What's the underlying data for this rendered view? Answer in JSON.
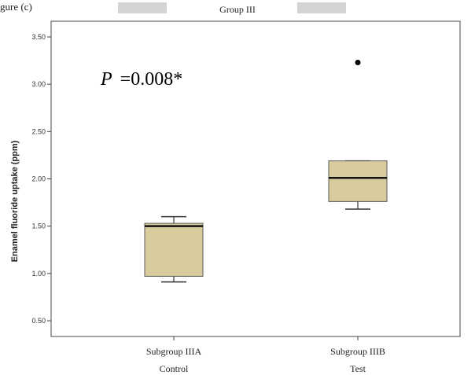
{
  "header_fragment": "gure (c)",
  "chart_data": {
    "type": "box",
    "title": "Group III",
    "xlabel": "",
    "ylabel": "Enamel fluoride uptake (ppm)",
    "ylim": [
      0.4,
      3.65
    ],
    "yticks": [
      "0.50",
      "1.00",
      "1.50",
      "2.00",
      "2.50",
      "3.00",
      "3.50"
    ],
    "ytick_values": [
      0.5,
      1.0,
      1.5,
      2.0,
      2.5,
      3.0,
      3.5
    ],
    "grid": false,
    "annotation": {
      "p_label": "P",
      "p_value": "=0.008*"
    },
    "categories": [
      {
        "line1": "Subgroup IIIA",
        "line2": "Control"
      },
      {
        "line1": "Subgroup IIIB",
        "line2": "Test"
      }
    ],
    "boxes": [
      {
        "min": 0.91,
        "q1": 0.97,
        "median": 1.5,
        "q3": 1.53,
        "max": 1.6,
        "outliers": []
      },
      {
        "min": 1.68,
        "q1": 1.76,
        "median": 2.01,
        "q3": 2.19,
        "max": 2.19,
        "outliers": [
          3.23
        ]
      }
    ],
    "colors": {
      "box_fill": "#d8cc9c",
      "box_stroke": "#5a5a5a",
      "median": "#111111",
      "whisker": "#333333",
      "outlier": "#000000",
      "axis": "#444444",
      "header_box": "#d3d3d3"
    }
  }
}
